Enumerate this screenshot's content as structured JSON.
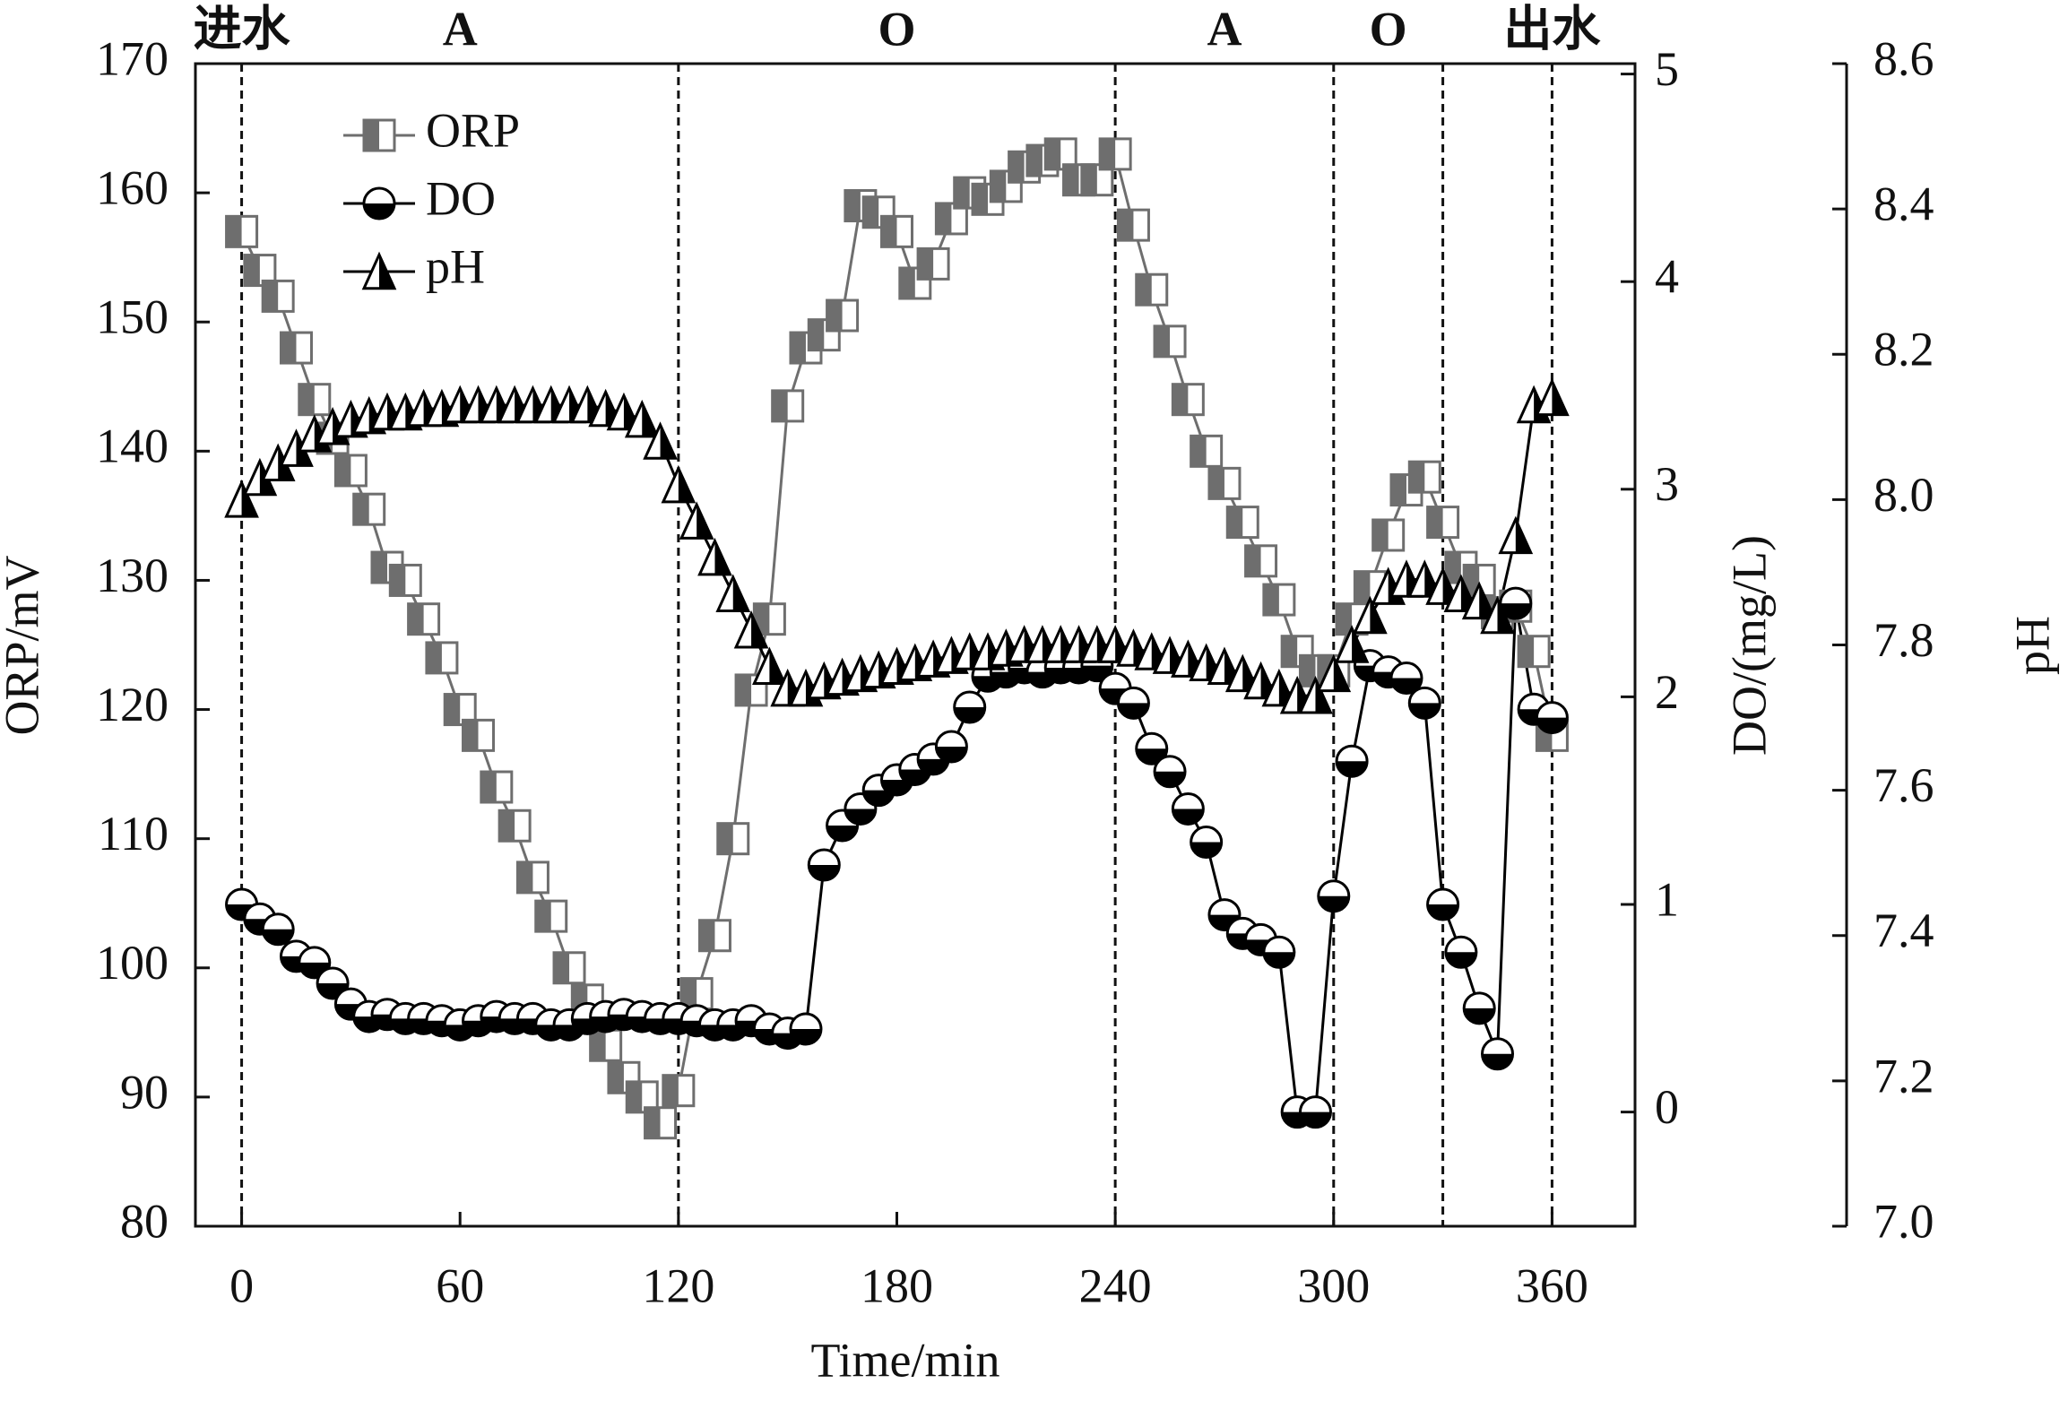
{
  "chart_data": {
    "type": "line",
    "xlabel": "Time/min",
    "ylabel": "ORP/mV",
    "y2label": "DO/(mg/L)",
    "y3label": "pH",
    "phase_lines": [
      0,
      120,
      240,
      300,
      330,
      360
    ],
    "phase_labels": [
      "进水",
      "A",
      "O",
      "A",
      "O",
      "出水"
    ],
    "legend": "upper left",
    "xlim": [
      -12.7,
      382.8
    ],
    "xticks": [
      0,
      60,
      120,
      180,
      240,
      300,
      360
    ],
    "ylim": [
      80,
      170
    ],
    "yticks": [
      80,
      90,
      100,
      110,
      120,
      130,
      140,
      150,
      160,
      170
    ],
    "y2lim": [
      -0.55,
      5.05
    ],
    "y2ticks": [
      0,
      1,
      2,
      3,
      4,
      5
    ],
    "y3lim": [
      7.0,
      8.6
    ],
    "y3ticks": [
      {
        "value": 7.0,
        "label": "7.0"
      },
      7.2,
      7.4,
      7.6,
      7.8,
      {
        "value": 8.0,
        "label": "8.0"
      },
      8.2,
      8.4,
      8.6
    ],
    "x": [
      0,
      5,
      10,
      15,
      20,
      25,
      30,
      35,
      40,
      45,
      50,
      55,
      60,
      65,
      70,
      75,
      80,
      85,
      90,
      95,
      100,
      105,
      110,
      115,
      120,
      125,
      130,
      135,
      140,
      145,
      150,
      155,
      160,
      165,
      170,
      175,
      180,
      185,
      190,
      195,
      200,
      205,
      210,
      215,
      220,
      225,
      230,
      235,
      240,
      245,
      250,
      255,
      260,
      265,
      270,
      275,
      280,
      285,
      290,
      295,
      300,
      305,
      310,
      315,
      320,
      325,
      330,
      335,
      340,
      345,
      350,
      355,
      360
    ],
    "series": [
      {
        "name": "ORP",
        "color": "#6e6e6e",
        "marker": "square",
        "values": [
          157,
          154,
          152,
          148,
          144,
          141,
          138.5,
          135.5,
          131,
          130,
          127,
          124,
          120,
          118,
          114,
          111,
          107,
          104,
          100,
          97.5,
          94,
          91.5,
          90,
          88,
          90.5,
          98,
          102.5,
          110,
          121.5,
          127,
          143.5,
          148,
          149,
          150.5,
          159,
          158.5,
          157,
          153,
          154.5,
          158,
          160,
          159.5,
          160.5,
          162,
          162.5,
          163,
          161,
          161,
          163,
          157.5,
          152.5,
          148.5,
          144,
          140,
          137.5,
          134.5,
          131.5,
          128.5,
          124.5,
          123,
          123,
          127,
          129.5,
          133.5,
          137,
          138,
          134.5,
          131,
          130,
          127.5,
          128,
          124.5,
          118
        ]
      },
      {
        "name": "DO",
        "color": "#000000",
        "marker": "circle",
        "axis": "y2",
        "values": [
          1.0,
          0.93,
          0.88,
          0.75,
          0.72,
          0.62,
          0.52,
          0.46,
          0.47,
          0.45,
          0.45,
          0.44,
          0.42,
          0.44,
          0.46,
          0.45,
          0.45,
          0.42,
          0.42,
          0.45,
          0.46,
          0.47,
          0.46,
          0.45,
          0.45,
          0.44,
          0.42,
          0.42,
          0.44,
          0.4,
          0.38,
          0.4,
          1.19,
          1.38,
          1.46,
          1.55,
          1.6,
          1.65,
          1.7,
          1.76,
          1.95,
          2.1,
          2.12,
          2.14,
          2.12,
          2.14,
          2.14,
          2.15,
          2.04,
          1.97,
          1.75,
          1.64,
          1.46,
          1.3,
          0.95,
          0.86,
          0.83,
          0.77,
          0.0,
          0.0,
          1.04,
          1.69,
          2.15,
          2.12,
          2.09,
          1.97,
          1.0,
          0.77,
          0.5,
          0.28,
          2.45,
          1.94,
          1.9
        ]
      },
      {
        "name": "pH",
        "color": "#000000",
        "marker": "triangle",
        "axis": "y3",
        "values": [
          8.0,
          8.03,
          8.05,
          8.07,
          8.09,
          8.1,
          8.11,
          8.115,
          8.12,
          8.12,
          8.125,
          8.125,
          8.13,
          8.13,
          8.13,
          8.13,
          8.13,
          8.13,
          8.13,
          8.13,
          8.125,
          8.12,
          8.11,
          8.08,
          8.02,
          7.97,
          7.92,
          7.87,
          7.82,
          7.77,
          7.74,
          7.74,
          7.75,
          7.755,
          7.76,
          7.765,
          7.77,
          7.775,
          7.78,
          7.785,
          7.79,
          7.79,
          7.795,
          7.8,
          7.8,
          7.8,
          7.8,
          7.8,
          7.8,
          7.795,
          7.79,
          7.785,
          7.78,
          7.775,
          7.77,
          7.76,
          7.75,
          7.74,
          7.73,
          7.73,
          7.76,
          7.8,
          7.84,
          7.88,
          7.89,
          7.89,
          7.88,
          7.87,
          7.86,
          7.84,
          7.95,
          8.13,
          8.14
        ]
      }
    ]
  }
}
